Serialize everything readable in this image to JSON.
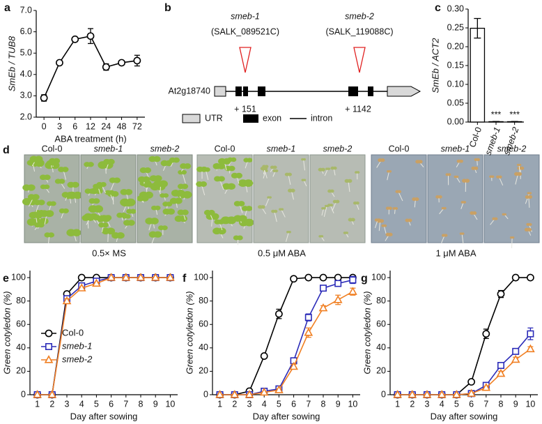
{
  "chart_data": [
    {
      "type": "line",
      "label": "a",
      "ylabel": "SmEb / TUB8",
      "xlabel": "ABA treatment (h)",
      "categories": [
        "0",
        "3",
        "6",
        "12",
        "24",
        "48",
        "72"
      ],
      "values": [
        2.9,
        4.55,
        5.65,
        5.8,
        4.35,
        4.55,
        4.65
      ],
      "errors": [
        0.15,
        0.05,
        0.05,
        0.35,
        0.15,
        0.1,
        0.25
      ],
      "color": "#000000",
      "marker": "circle",
      "ylim": [
        2,
        7
      ],
      "yticks": [
        {
          "value": 2,
          "label": "2.0"
        },
        {
          "value": 3,
          "label": "3.0"
        },
        {
          "value": 4,
          "label": "4.0"
        },
        {
          "value": 5,
          "label": "5.0"
        },
        {
          "value": 6,
          "label": "6.0"
        },
        {
          "value": 7,
          "label": "7.0"
        }
      ]
    },
    {
      "type": "bar",
      "label": "c",
      "ylabel": "SmEb / ACT2",
      "categories": [
        "Col-0",
        "smeb-1",
        "smeb-2"
      ],
      "values": [
        0.249,
        0.001,
        0.001
      ],
      "errors": [
        0.026,
        0.0005,
        0.0005
      ],
      "color": "#ffffff",
      "annotations": [
        {
          "label": "***",
          "category": "smeb-1"
        },
        {
          "label": "***",
          "category": "smeb-2"
        }
      ],
      "ylim": [
        0,
        0.3
      ],
      "yticks": [
        {
          "value": 0,
          "label": "0.00"
        },
        {
          "value": 0.05,
          "label": "0.05"
        },
        {
          "value": 0.1,
          "label": "0.10"
        },
        {
          "value": 0.15,
          "label": "0.15"
        },
        {
          "value": 0.2,
          "label": "0.20"
        },
        {
          "value": 0.25,
          "label": "0.25"
        },
        {
          "value": 0.3,
          "label": "0.30"
        }
      ]
    },
    {
      "type": "line",
      "label": "e",
      "ylabel": "Green cotyledon (%)",
      "xlabel": "Day after sowing",
      "legend": "lower left",
      "x": [
        1,
        2,
        3,
        4,
        5,
        6,
        7,
        8,
        9,
        10
      ],
      "series": [
        {
          "name": "Col-0",
          "color": "#000000",
          "marker": "circle",
          "values": [
            0,
            0,
            86,
            100,
            100,
            100,
            100,
            100,
            100,
            100
          ],
          "errors": [
            0,
            0,
            2,
            0,
            0,
            0,
            0,
            0,
            0,
            0
          ]
        },
        {
          "name": "smeb-1",
          "color": "#2b2bb8",
          "marker": "square",
          "values": [
            0,
            0,
            82,
            93,
            97,
            100,
            100,
            100,
            100,
            100
          ],
          "errors": [
            0,
            0,
            2,
            1,
            1,
            0,
            0,
            0,
            0,
            0
          ]
        },
        {
          "name": "smeb-2",
          "color": "#f07f22",
          "marker": "triangle",
          "values": [
            0,
            0,
            80,
            91,
            95,
            100,
            100,
            100,
            100,
            100
          ],
          "errors": [
            0,
            0,
            2,
            1,
            1,
            0,
            0,
            0,
            0,
            0
          ]
        }
      ],
      "xlim": [
        0.5,
        10.5
      ],
      "xticks": [
        1,
        2,
        3,
        4,
        5,
        6,
        7,
        8,
        9,
        10
      ],
      "ylim": [
        0,
        106
      ],
      "yticks": [
        0,
        20,
        40,
        60,
        80,
        100
      ]
    },
    {
      "type": "line",
      "label": "f",
      "ylabel": "Green cotyledon (%)",
      "xlabel": "Day after sowing",
      "x": [
        1,
        2,
        3,
        4,
        5,
        6,
        7,
        8,
        9,
        10
      ],
      "series": [
        {
          "name": "Col-0",
          "color": "#000000",
          "marker": "circle",
          "values": [
            0,
            0,
            3,
            33,
            69,
            99,
            100,
            100,
            100,
            100
          ],
          "errors": [
            0,
            0,
            0,
            1,
            4,
            1,
            0,
            0,
            0,
            0
          ]
        },
        {
          "name": "smeb-1",
          "color": "#2b2bb8",
          "marker": "square",
          "values": [
            0,
            0,
            0,
            3,
            5,
            29,
            66,
            91,
            95,
            98
          ],
          "errors": [
            0,
            0,
            0,
            0,
            1,
            2,
            3,
            2,
            2,
            3
          ]
        },
        {
          "name": "smeb-2",
          "color": "#f07f22",
          "marker": "triangle",
          "values": [
            0,
            0,
            0,
            2,
            4,
            24,
            53,
            74,
            81,
            88
          ],
          "errors": [
            0,
            0,
            0,
            0,
            1,
            2,
            4,
            2,
            4,
            3
          ]
        }
      ],
      "xlim": [
        0.5,
        10.5
      ],
      "xticks": [
        1,
        2,
        3,
        4,
        5,
        6,
        7,
        8,
        9,
        10
      ],
      "ylim": [
        0,
        106
      ],
      "yticks": [
        0,
        20,
        40,
        60,
        80,
        100
      ]
    },
    {
      "type": "line",
      "label": "g",
      "ylabel": "Green cotyledon (%)",
      "xlabel": "Day after sowing",
      "x": [
        1,
        2,
        3,
        4,
        5,
        6,
        7,
        8,
        9,
        10
      ],
      "series": [
        {
          "name": "Col-0",
          "color": "#000000",
          "marker": "circle",
          "values": [
            0,
            0,
            0,
            0,
            0,
            11,
            52,
            86,
            100,
            100
          ],
          "errors": [
            0,
            0,
            0,
            0,
            0,
            1,
            4,
            3,
            0,
            0
          ]
        },
        {
          "name": "smeb-1",
          "color": "#2b2bb8",
          "marker": "square",
          "values": [
            0,
            0,
            0,
            0,
            0,
            1,
            8,
            25,
            37,
            52
          ],
          "errors": [
            0,
            0,
            0,
            0,
            0,
            0,
            1,
            2,
            2,
            5
          ]
        },
        {
          "name": "smeb-2",
          "color": "#f07f22",
          "marker": "triangle",
          "values": [
            0,
            0,
            0,
            0,
            0,
            1,
            6,
            18,
            30,
            39
          ],
          "errors": [
            0,
            0,
            0,
            0,
            0,
            0,
            1,
            2,
            2,
            2
          ]
        }
      ],
      "xlim": [
        0.5,
        10.5
      ],
      "xticks": [
        1,
        2,
        3,
        4,
        5,
        6,
        7,
        8,
        9,
        10
      ],
      "ylim": [
        0,
        106
      ],
      "yticks": [
        0,
        20,
        40,
        60,
        80,
        100
      ]
    }
  ],
  "diagram": {
    "label": "b",
    "gene": "At2g18740",
    "alleles": [
      {
        "name": "smeb-1",
        "line": "(SALK_089521C)",
        "position": "+ 151"
      },
      {
        "name": "smeb-2",
        "line": "(SALK_119088C)",
        "position": "+ 1142"
      }
    ],
    "legend": [
      "UTR",
      "exon",
      "intron"
    ]
  },
  "photos": {
    "label": "d",
    "columns": [
      "Col-0",
      "smeb-1",
      "smeb-2"
    ],
    "conditions": [
      "0.5× MS",
      "0.5 μM ABA",
      "1 μM ABA"
    ]
  }
}
